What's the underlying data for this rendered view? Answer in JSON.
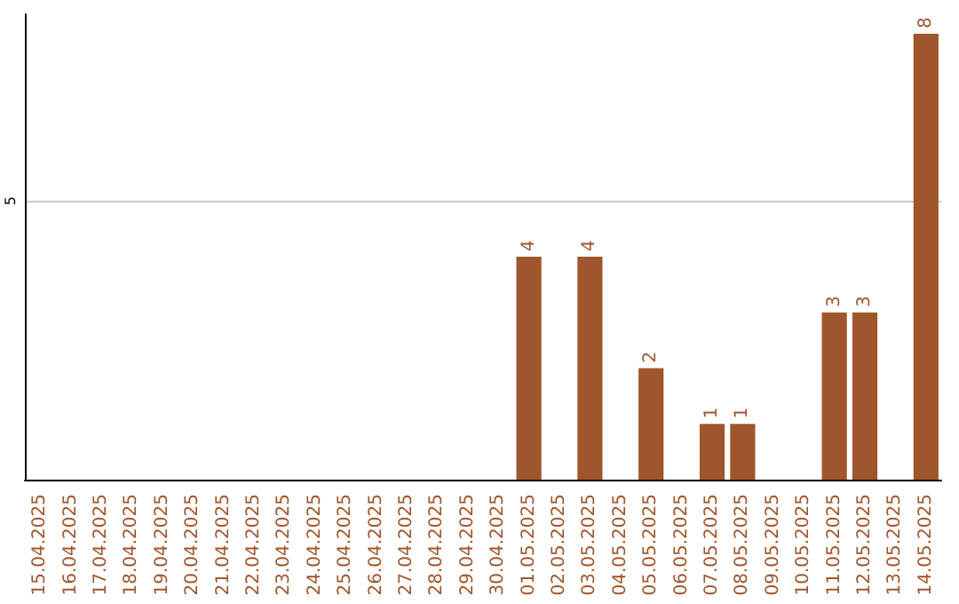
{
  "chart_data": {
    "type": "bar",
    "categories": [
      "15.04.2025",
      "16.04.2025",
      "17.04.2025",
      "18.04.2025",
      "19.04.2025",
      "20.04.2025",
      "21.04.2025",
      "22.04.2025",
      "23.04.2025",
      "24.04.2025",
      "25.04.2025",
      "26.04.2025",
      "27.04.2025",
      "28.04.2025",
      "29.04.2025",
      "30.04.2025",
      "01.05.2025",
      "02.05.2025",
      "03.05.2025",
      "04.05.2025",
      "05.05.2025",
      "06.05.2025",
      "07.05.2025",
      "08.05.2025",
      "09.05.2025",
      "10.05.2025",
      "11.05.2025",
      "12.05.2025",
      "13.05.2025",
      "14.05.2025"
    ],
    "values": [
      null,
      null,
      null,
      null,
      null,
      null,
      null,
      null,
      null,
      null,
      null,
      null,
      null,
      null,
      null,
      null,
      4,
      null,
      4,
      null,
      2,
      null,
      1,
      1,
      null,
      null,
      3,
      3,
      null,
      8
    ],
    "color": "#a0562c",
    "ylim": [
      0,
      8.35
    ],
    "yticks": [
      5
    ],
    "grid": "y",
    "data_labels": true
  }
}
